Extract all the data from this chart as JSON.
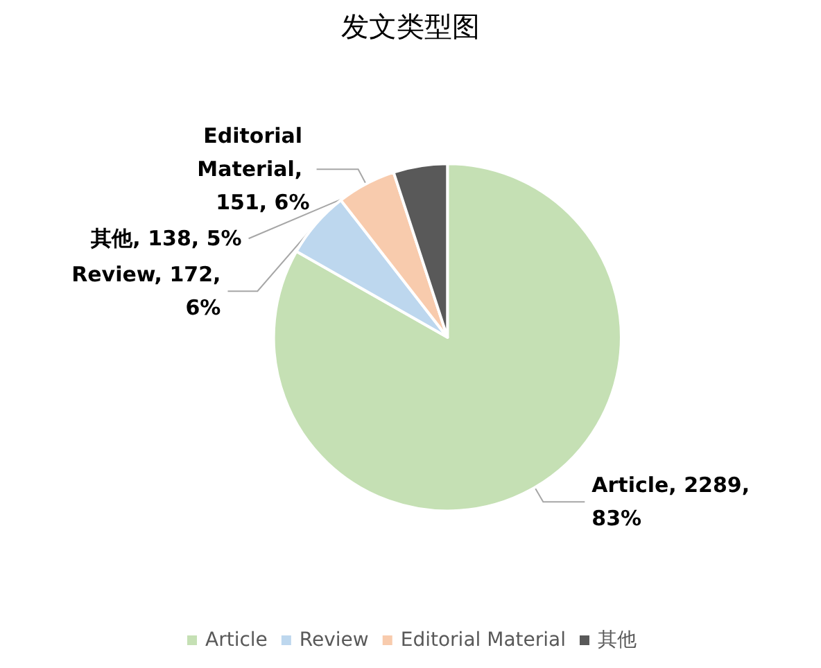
{
  "chart_data": {
    "type": "pie",
    "title": "发文类型图",
    "categories": [
      "Article",
      "Review",
      "Editorial Material",
      "其他"
    ],
    "values": [
      2289,
      172,
      151,
      138
    ],
    "colors": [
      "#c5e0b4",
      "#bdd7ee",
      "#f8cbad",
      "#595959"
    ],
    "value_labels": [
      "Article, 2289, 83%",
      "Review, 172, 6%",
      "Editorial Material, 151, 6%",
      "其他, 138, 5%"
    ],
    "legend": "bottom"
  }
}
